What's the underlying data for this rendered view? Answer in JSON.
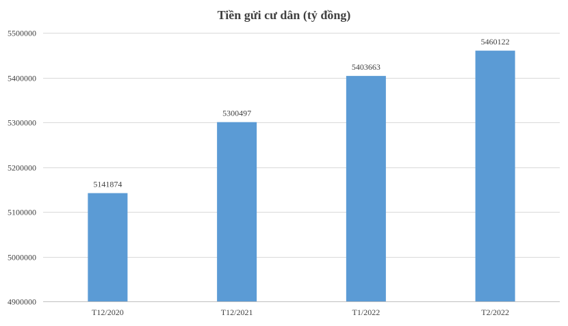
{
  "chart_data": {
    "type": "bar",
    "title": "Tiền gửi cư dân (tỷ đồng)",
    "categories": [
      "T12/2020",
      "T12/2021",
      "T1/2022",
      "T2/2022"
    ],
    "values": [
      5141874,
      5300497,
      5403663,
      5460122
    ],
    "data_labels": [
      "5141874",
      "5300497",
      "5403663",
      "5460122"
    ],
    "ylim": [
      4900000,
      5500000
    ],
    "yticks": [
      4900000,
      5000000,
      5100000,
      5200000,
      5300000,
      5400000,
      5500000
    ],
    "ytick_labels": [
      "4900000",
      "5000000",
      "5100000",
      "5200000",
      "5300000",
      "5400000",
      "5500000"
    ],
    "grid": true,
    "legend": "none",
    "bar_color": "#5b9bd5"
  }
}
